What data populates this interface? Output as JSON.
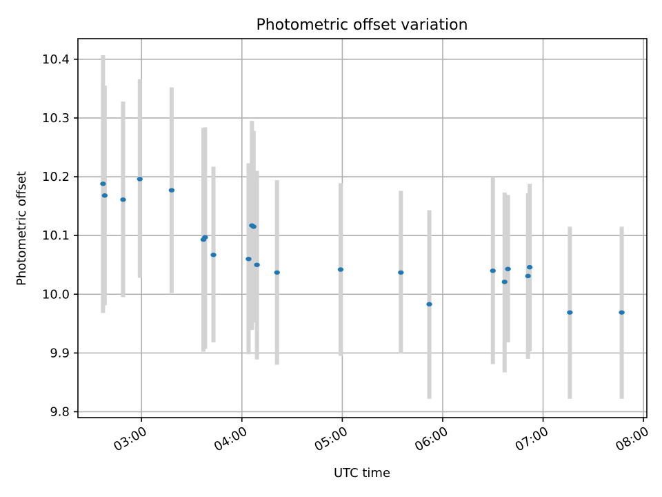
{
  "chart_data": {
    "type": "scatter",
    "title": "Photometric offset variation",
    "xlabel": "UTC time",
    "ylabel": "Photometric offset",
    "xlim": [
      "02:22",
      "08:02"
    ],
    "ylim": [
      9.79,
      10.435
    ],
    "grid": true,
    "x_tick_labels": [
      "03:00",
      "04:00",
      "05:00",
      "06:00",
      "07:00",
      "08:00"
    ],
    "y_tick_labels": [
      "9.8",
      "9.9",
      "10.0",
      "10.1",
      "10.2",
      "10.3",
      "10.4"
    ],
    "error_color": "#d3d3d3",
    "point_color": "#1f77b4",
    "points": [
      {
        "x": "02:37",
        "y": 10.188,
        "ylow": 9.968,
        "yhigh": 10.407
      },
      {
        "x": "02:38",
        "y": 10.168,
        "ylow": 9.981,
        "yhigh": 10.355
      },
      {
        "x": "02:49",
        "y": 10.161,
        "ylow": 9.995,
        "yhigh": 10.328
      },
      {
        "x": "02:59",
        "y": 10.196,
        "ylow": 10.028,
        "yhigh": 10.366
      },
      {
        "x": "03:18",
        "y": 10.177,
        "ylow": 10.002,
        "yhigh": 10.352
      },
      {
        "x": "03:37",
        "y": 10.093,
        "ylow": 9.902,
        "yhigh": 10.283
      },
      {
        "x": "03:38",
        "y": 10.097,
        "ylow": 9.907,
        "yhigh": 10.284
      },
      {
        "x": "03:43",
        "y": 10.067,
        "ylow": 9.918,
        "yhigh": 10.217
      },
      {
        "x": "04:04",
        "y": 10.06,
        "ylow": 9.898,
        "yhigh": 10.223
      },
      {
        "x": "04:06",
        "y": 10.117,
        "ylow": 9.939,
        "yhigh": 10.295
      },
      {
        "x": "04:07",
        "y": 10.115,
        "ylow": 9.952,
        "yhigh": 10.278
      },
      {
        "x": "04:09",
        "y": 10.05,
        "ylow": 9.889,
        "yhigh": 10.21
      },
      {
        "x": "04:21",
        "y": 10.037,
        "ylow": 9.88,
        "yhigh": 10.194
      },
      {
        "x": "04:59",
        "y": 10.042,
        "ylow": 9.895,
        "yhigh": 10.189
      },
      {
        "x": "05:35",
        "y": 10.037,
        "ylow": 9.899,
        "yhigh": 10.176
      },
      {
        "x": "05:52",
        "y": 9.983,
        "ylow": 9.822,
        "yhigh": 10.143
      },
      {
        "x": "06:30",
        "y": 10.04,
        "ylow": 9.881,
        "yhigh": 10.2
      },
      {
        "x": "06:37",
        "y": 10.021,
        "ylow": 9.867,
        "yhigh": 10.173
      },
      {
        "x": "06:39",
        "y": 10.043,
        "ylow": 9.918,
        "yhigh": 10.169
      },
      {
        "x": "06:51",
        "y": 10.031,
        "ylow": 9.89,
        "yhigh": 10.172
      },
      {
        "x": "06:52",
        "y": 10.046,
        "ylow": 9.903,
        "yhigh": 10.188
      },
      {
        "x": "07:16",
        "y": 9.969,
        "ylow": 9.822,
        "yhigh": 10.115
      },
      {
        "x": "07:47",
        "y": 9.969,
        "ylow": 9.822,
        "yhigh": 10.115
      }
    ]
  }
}
